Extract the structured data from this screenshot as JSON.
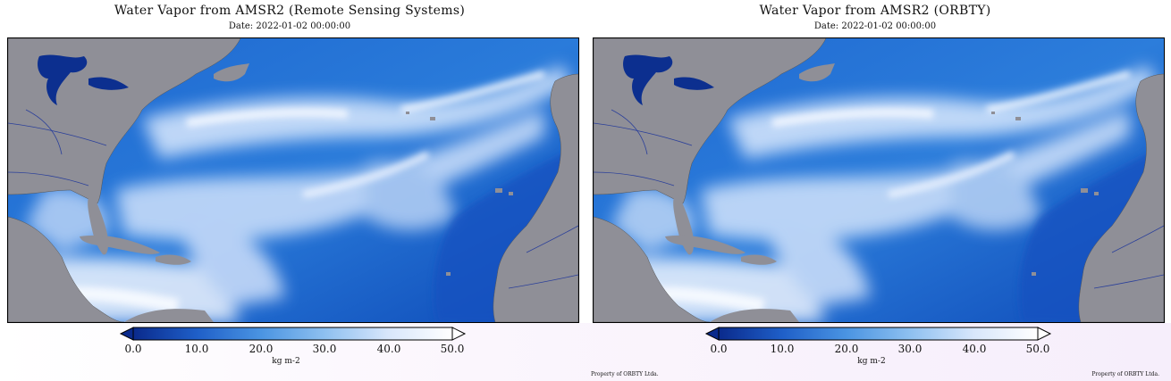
{
  "panels": [
    {
      "title": "Water Vapor from AMSR2 (Remote Sensing Systems)",
      "date": "Date: 2022-01-02 00:00:00",
      "credit_left": "",
      "credit_right": ""
    },
    {
      "title": "Water Vapor from AMSR2 (ORBTY)",
      "date": "Date: 2022-01-02 00:00:00",
      "credit_left": "Property of ORBTY Ltda.",
      "credit_right": "Property of ORBTY Ltda."
    }
  ],
  "colorbar": {
    "ticks": [
      "0.0",
      "10.0",
      "20.0",
      "30.0",
      "40.0",
      "50.0"
    ],
    "unit": "kg m-2",
    "colors": [
      "#0a2a8c",
      "#1f5fc8",
      "#4a94e2",
      "#8ec0f0",
      "#d8e6fb",
      "#ffffff"
    ]
  },
  "map_colors": {
    "land": "#8f8f97",
    "ocean_dry": "#1452c0",
    "vapor": "#eaf2ff",
    "lakes": "#0c2f8f",
    "borders": "#2a3f9a"
  }
}
